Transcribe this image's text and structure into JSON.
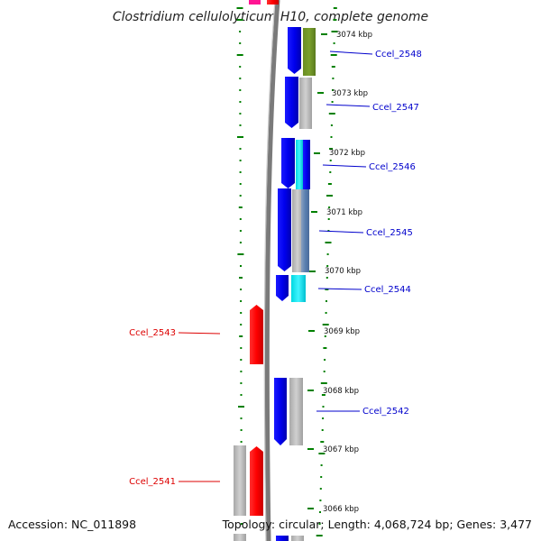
{
  "title": "Clostridium cellulolyticum H10, complete genome",
  "footer": {
    "accession": "Accession: NC_011898",
    "topology": "Topology: circular; Length: 4,068,724 bp; Genes: 3,477"
  },
  "ticks": [
    "3074 kbp",
    "3073 kbp",
    "3072 kbp",
    "3071 kbp",
    "3070 kbp",
    "3069 kbp",
    "3068 kbp",
    "3067 kbp",
    "3066 kbp"
  ],
  "gene_labels": {
    "ccel_2548": "Ccel_2548",
    "ccel_2547": "Ccel_2547",
    "ccel_2546": "Ccel_2546",
    "ccel_2545": "Ccel_2545",
    "ccel_2544": "Ccel_2544",
    "ccel_2543": "Ccel_2543",
    "ccel_2542": "Ccel_2542",
    "ccel_2541": "Ccel_2541"
  },
  "colors": {
    "forward_strand": "#0000ee",
    "reverse_strand": "#ff0000",
    "rna_gene": "#00e5ee",
    "annotation_track": "#b5b5b5",
    "label_forward": "#0000cc",
    "label_reverse": "#dd0000",
    "backbone": "#808080",
    "tick": "#008000"
  }
}
